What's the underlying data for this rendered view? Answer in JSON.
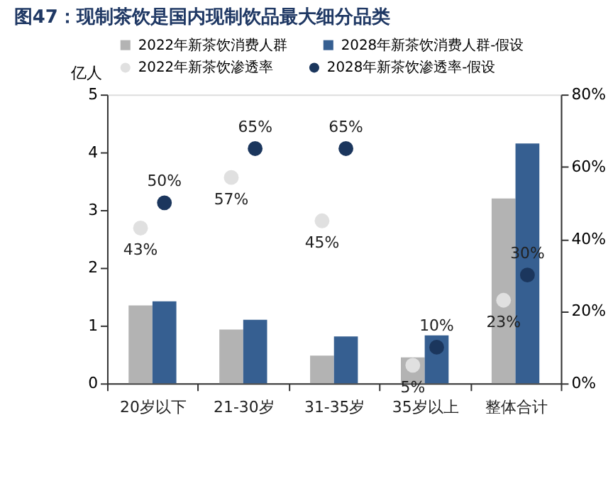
{
  "chart_data": {
    "type": "bar",
    "title": "图47：现制茶饮是国内现制饮品最大细分品类",
    "ylabel": "亿人",
    "categories": [
      "20岁以下",
      "21-30岁",
      "31-35岁",
      "35岁以上",
      "整体合计"
    ],
    "series": [
      {
        "name": "2022年新茶饮消费人群",
        "color": "#b3b3b3",
        "values": [
          1.35,
          0.93,
          0.48,
          0.45,
          3.2
        ]
      },
      {
        "name": "2028年新茶饮消费人群-假设",
        "color": "#365f91",
        "values": [
          1.42,
          1.1,
          0.81,
          0.83,
          4.15
        ]
      },
      {
        "name": "2022年新茶饮渗透率",
        "type": "scatter",
        "axis": "y2",
        "color": "#e0e0e0",
        "values": [
          43,
          57,
          45,
          5,
          23
        ],
        "value_labels": [
          "43%",
          "57%",
          "45%",
          "5%",
          "23%"
        ]
      },
      {
        "name": "2028年新茶饮渗透率-假设",
        "type": "scatter",
        "axis": "y2",
        "color": "#1b365d",
        "values": [
          50,
          65,
          65,
          10,
          30
        ],
        "value_labels": [
          "50%",
          "65%",
          "65%",
          "10%",
          "30%"
        ]
      }
    ],
    "ylim": [
      0,
      5
    ],
    "yticks": [
      0,
      1,
      2,
      3,
      4,
      5
    ],
    "y2lim": [
      0,
      80
    ],
    "y2ticks": [
      {
        "value": 0,
        "label": "0%"
      },
      {
        "value": 20,
        "label": "20%"
      },
      {
        "value": 40,
        "label": "40%"
      },
      {
        "value": 60,
        "label": "60%"
      },
      {
        "value": 80,
        "label": "80%"
      }
    ],
    "marker": "circle",
    "grid": false,
    "legend": "top"
  }
}
